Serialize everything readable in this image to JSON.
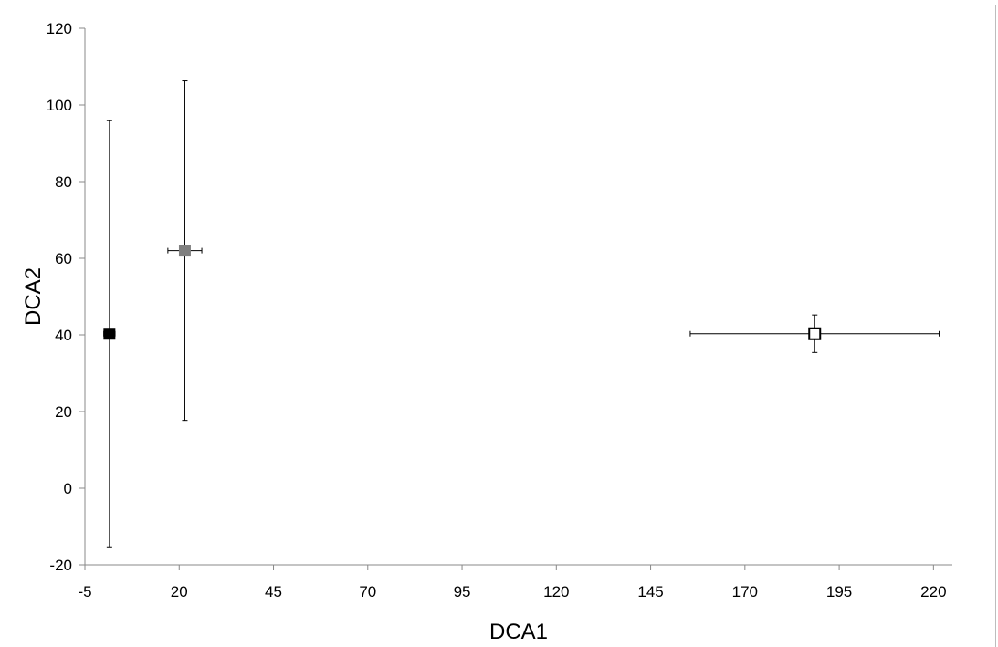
{
  "chart_data": {
    "type": "scatter",
    "title": "",
    "xlabel": "DCA1",
    "ylabel": "DCA2",
    "xlim": [
      -5,
      225
    ],
    "ylim": [
      -20,
      120
    ],
    "xticks": [
      -5,
      20,
      45,
      70,
      95,
      120,
      145,
      170,
      195,
      220
    ],
    "yticks": [
      -20,
      0,
      20,
      40,
      60,
      80,
      100,
      120
    ],
    "grid": false,
    "legend": "none",
    "points": [
      {
        "x": 1.5,
        "y": 40.3,
        "x_err": 1.5,
        "y_err_low": 55.6,
        "y_err_high": 55.6,
        "marker": "square-filled",
        "color": "#000000"
      },
      {
        "x": 21.5,
        "y": 62.0,
        "x_err": 4.5,
        "y_err_low": 44.3,
        "y_err_high": 44.3,
        "marker": "square-filled",
        "color": "#808080"
      },
      {
        "x": 188.5,
        "y": 40.3,
        "x_err": 33.0,
        "y_err_low": 4.9,
        "y_err_high": 4.9,
        "marker": "square-open",
        "color": "#000000"
      }
    ]
  }
}
